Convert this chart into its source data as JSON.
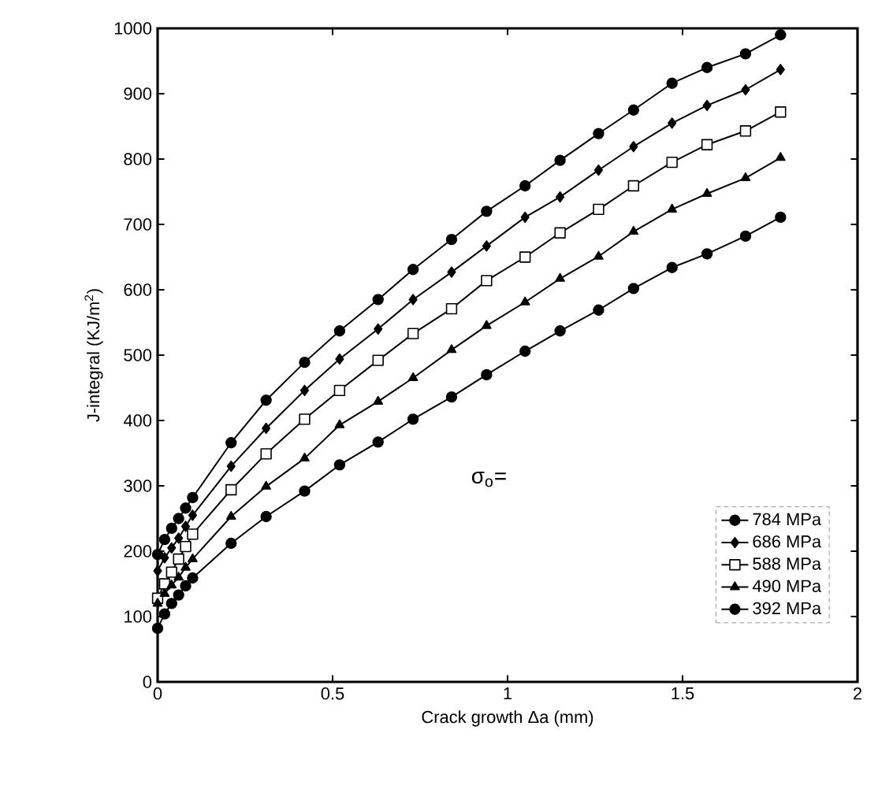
{
  "chart_data": {
    "type": "line",
    "xlabel": "Crack growth Δa (mm)",
    "ylabel": "J-integral (KJ/m$^{2}$)",
    "x": [
      0,
      0.02,
      0.04,
      0.06,
      0.08,
      0.1,
      0.21,
      0.31,
      0.42,
      0.52,
      0.63,
      0.73,
      0.84,
      0.94,
      1.05,
      1.15,
      1.26,
      1.36,
      1.47,
      1.57,
      1.68,
      1.78
    ],
    "series": [
      {
        "name": "784 MPa",
        "color": "#000000",
        "marker": "circle",
        "values": [
          195,
          218,
          235,
          250,
          266,
          282,
          366,
          431,
          489,
          537,
          585,
          631,
          677,
          720,
          759,
          798,
          839,
          875,
          916,
          940,
          961,
          990
        ]
      },
      {
        "name": "686 MPa",
        "color": "#000000",
        "marker": "diamond",
        "values": [
          170,
          190,
          205,
          220,
          238,
          255,
          330,
          388,
          446,
          494,
          540,
          585,
          627,
          667,
          711,
          742,
          783,
          819,
          855,
          882,
          906,
          937
        ]
      },
      {
        "name": "588 MPa",
        "color": "#000000",
        "marker": "square",
        "values": [
          128,
          150,
          168,
          188,
          207,
          226,
          294,
          349,
          402,
          446,
          492,
          533,
          571,
          614,
          650,
          687,
          723,
          759,
          795,
          822,
          843,
          872
        ]
      },
      {
        "name": "490 MPa",
        "color": "#000000",
        "marker": "triangle",
        "values": [
          120,
          135,
          148,
          160,
          175,
          188,
          253,
          299,
          342,
          393,
          429,
          465,
          508,
          545,
          581,
          617,
          651,
          689,
          723,
          747,
          771,
          802
        ]
      },
      {
        "name": "392 MPa",
        "color": "#000000",
        "marker": "circle",
        "values": [
          82,
          104,
          120,
          133,
          147,
          159,
          212,
          253,
          292,
          332,
          367,
          402,
          436,
          470,
          506,
          537,
          569,
          602,
          634,
          655,
          682,
          711
        ]
      }
    ],
    "xlim": [
      0,
      2
    ],
    "xticks": [
      0,
      0.5,
      1,
      1.5,
      2
    ],
    "ylim": [
      0,
      1000
    ],
    "yticks": [
      0,
      100,
      200,
      300,
      400,
      500,
      600,
      700,
      800,
      900,
      1000
    ],
    "grid": false,
    "legend": "bottom right",
    "line_style": "solid",
    "annotations": [
      "σ$_{o}$="
    ]
  }
}
